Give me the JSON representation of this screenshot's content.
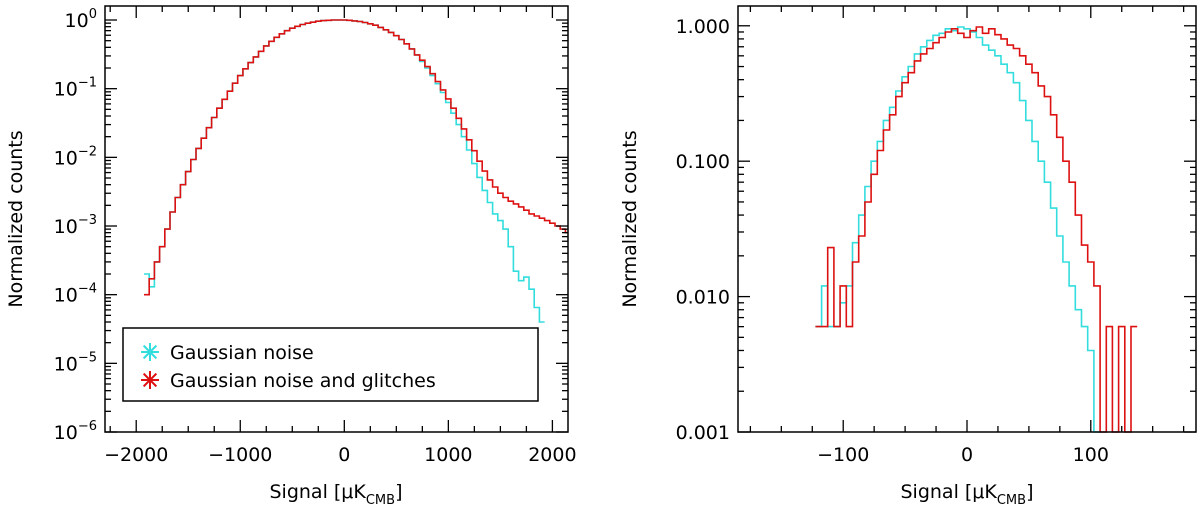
{
  "chart_data": [
    {
      "type": "line",
      "xlabel": "Signal [μK_CMB]",
      "ylabel": "Normalized counts",
      "xlim": [
        -2300,
        2150
      ],
      "ylim": [
        1e-06,
        1.6
      ],
      "yscale": "log",
      "x_ticks": [
        -2000,
        -1000,
        0,
        1000,
        2000
      ],
      "x_tick_labels": [
        "−2000",
        "−1000",
        "0",
        "1000",
        "2000"
      ],
      "y_ticks": [
        1e-06,
        1e-05,
        0.0001,
        0.001,
        0.01,
        0.1,
        1
      ],
      "y_tick_labels": [
        {
          "base": "10",
          "exp": "−6"
        },
        {
          "base": "10",
          "exp": "−5"
        },
        {
          "base": "10",
          "exp": "−4"
        },
        {
          "base": "10",
          "exp": "−3"
        },
        {
          "base": "10",
          "exp": "−2"
        },
        {
          "base": "10",
          "exp": "−1"
        },
        {
          "base": "10",
          "exp": "0"
        }
      ],
      "grid": false,
      "legend": {
        "position": "bottom-left",
        "boxed": true
      },
      "series": [
        {
          "name": "Gaussian noise",
          "color": "#33dddd",
          "x": [
            -1900,
            -1850,
            -1800,
            -1750,
            -1700,
            -1650,
            -1600,
            -1550,
            -1500,
            -1450,
            -1400,
            -1350,
            -1300,
            -1250,
            -1200,
            -1150,
            -1100,
            -1050,
            -1000,
            -950,
            -900,
            -850,
            -800,
            -750,
            -700,
            -650,
            -600,
            -550,
            -500,
            -450,
            -400,
            -350,
            -300,
            -250,
            -200,
            -150,
            -100,
            -50,
            0,
            50,
            100,
            150,
            200,
            250,
            300,
            350,
            400,
            450,
            500,
            550,
            600,
            650,
            700,
            750,
            800,
            850,
            900,
            950,
            1000,
            1050,
            1100,
            1150,
            1200,
            1250,
            1300,
            1350,
            1400,
            1450,
            1500,
            1550,
            1600,
            1650,
            1700,
            1750,
            1800,
            1850,
            1900
          ],
          "y": [
            0.0002,
            0.00013,
            0.0003,
            0.0005,
            0.0009,
            0.0016,
            0.0026,
            0.004,
            0.0062,
            0.0093,
            0.0135,
            0.019,
            0.027,
            0.038,
            0.052,
            0.07,
            0.092,
            0.12,
            0.155,
            0.195,
            0.24,
            0.29,
            0.35,
            0.42,
            0.49,
            0.56,
            0.63,
            0.7,
            0.76,
            0.81,
            0.86,
            0.9,
            0.93,
            0.96,
            0.98,
            0.99,
            1.0,
            1.0,
            1.0,
            0.99,
            0.97,
            0.95,
            0.92,
            0.88,
            0.84,
            0.78,
            0.72,
            0.66,
            0.59,
            0.52,
            0.45,
            0.38,
            0.31,
            0.25,
            0.2,
            0.155,
            0.118,
            0.088,
            0.063,
            0.044,
            0.03,
            0.02,
            0.0128,
            0.0081,
            0.0051,
            0.0033,
            0.0022,
            0.0015,
            0.0012,
            0.0009,
            0.0005,
            0.00022,
            0.00016,
            0.00018,
            0.00012,
            6.5e-05,
            4e-05
          ]
        },
        {
          "name": "Gaussian noise and glitches",
          "color": "#dd1111",
          "x": [
            -1900,
            -1850,
            -1800,
            -1750,
            -1700,
            -1650,
            -1600,
            -1550,
            -1500,
            -1450,
            -1400,
            -1350,
            -1300,
            -1250,
            -1200,
            -1150,
            -1100,
            -1050,
            -1000,
            -950,
            -900,
            -850,
            -800,
            -750,
            -700,
            -650,
            -600,
            -550,
            -500,
            -450,
            -400,
            -350,
            -300,
            -250,
            -200,
            -150,
            -100,
            -50,
            0,
            50,
            100,
            150,
            200,
            250,
            300,
            350,
            400,
            450,
            500,
            550,
            600,
            650,
            700,
            750,
            800,
            850,
            900,
            950,
            1000,
            1050,
            1100,
            1150,
            1200,
            1250,
            1300,
            1350,
            1400,
            1450,
            1500,
            1550,
            1600,
            1650,
            1700,
            1750,
            1800,
            1850,
            1900,
            1950,
            2000,
            2050,
            2100,
            2150
          ],
          "y": [
            0.0001,
            0.00017,
            0.0003,
            0.0005,
            0.0009,
            0.0016,
            0.0026,
            0.004,
            0.0062,
            0.0093,
            0.0135,
            0.019,
            0.027,
            0.038,
            0.052,
            0.07,
            0.092,
            0.12,
            0.155,
            0.195,
            0.24,
            0.29,
            0.35,
            0.42,
            0.49,
            0.56,
            0.63,
            0.7,
            0.76,
            0.81,
            0.86,
            0.9,
            0.93,
            0.96,
            0.98,
            0.99,
            1.0,
            1.0,
            1.0,
            0.99,
            0.97,
            0.95,
            0.92,
            0.88,
            0.84,
            0.78,
            0.72,
            0.66,
            0.59,
            0.52,
            0.45,
            0.38,
            0.31,
            0.26,
            0.21,
            0.165,
            0.127,
            0.096,
            0.071,
            0.052,
            0.037,
            0.026,
            0.018,
            0.0125,
            0.0088,
            0.0063,
            0.0047,
            0.0037,
            0.003,
            0.0026,
            0.0023,
            0.0021,
            0.0019,
            0.0017,
            0.0015,
            0.0014,
            0.0013,
            0.0012,
            0.0011,
            0.001,
            0.0009,
            0.0008
          ]
        }
      ]
    },
    {
      "type": "line",
      "xlabel": "Signal [μK_CMB]",
      "ylabel": "Normalized counts",
      "xlim": [
        -185,
        185
      ],
      "ylim": [
        0.001,
        1.4
      ],
      "yscale": "log",
      "x_ticks": [
        -100,
        0,
        100
      ],
      "x_tick_labels": [
        "−100",
        "0",
        "100"
      ],
      "y_ticks": [
        0.001,
        0.01,
        0.1,
        1
      ],
      "y_tick_labels": [
        "0.001",
        "0.010",
        "0.100",
        "1.000"
      ],
      "grid": false,
      "series": [
        {
          "name": "Gaussian noise",
          "color": "#33dddd",
          "x": [
            -120,
            -115,
            -110,
            -105,
            -100,
            -95,
            -90,
            -85,
            -80,
            -75,
            -70,
            -65,
            -60,
            -55,
            -50,
            -45,
            -40,
            -35,
            -30,
            -25,
            -20,
            -15,
            -10,
            -5,
            0,
            5,
            10,
            15,
            20,
            25,
            30,
            35,
            40,
            45,
            50,
            55,
            60,
            65,
            70,
            75,
            80,
            85,
            90,
            95,
            100,
            105
          ],
          "y": [
            0.006,
            0.012,
            0.006,
            0.006,
            0.009,
            0.012,
            0.025,
            0.04,
            0.065,
            0.1,
            0.14,
            0.2,
            0.25,
            0.33,
            0.42,
            0.5,
            0.62,
            0.7,
            0.78,
            0.85,
            0.88,
            0.95,
            0.92,
            0.98,
            0.95,
            0.9,
            0.82,
            0.72,
            0.66,
            0.6,
            0.52,
            0.45,
            0.38,
            0.28,
            0.2,
            0.14,
            0.1,
            0.07,
            0.045,
            0.028,
            0.018,
            0.012,
            0.008,
            0.006,
            0.004,
            0.001
          ]
        },
        {
          "name": "Gaussian noise and glitches",
          "color": "#dd1111",
          "x": [
            -120,
            -115,
            -110,
            -105,
            -100,
            -95,
            -90,
            -85,
            -80,
            -75,
            -70,
            -65,
            -60,
            -55,
            -50,
            -45,
            -40,
            -35,
            -30,
            -25,
            -20,
            -15,
            -10,
            -5,
            0,
            5,
            10,
            15,
            20,
            25,
            30,
            35,
            40,
            45,
            50,
            55,
            60,
            65,
            70,
            75,
            80,
            85,
            90,
            95,
            100,
            105,
            110,
            115,
            120,
            125,
            130,
            135
          ],
          "y": [
            0.006,
            0.006,
            0.023,
            0.006,
            0.012,
            0.006,
            0.018,
            0.028,
            0.05,
            0.08,
            0.12,
            0.17,
            0.22,
            0.3,
            0.38,
            0.45,
            0.55,
            0.62,
            0.68,
            0.75,
            0.82,
            0.9,
            0.95,
            0.88,
            0.82,
            0.92,
            0.98,
            0.88,
            0.95,
            0.86,
            0.8,
            0.72,
            0.68,
            0.6,
            0.52,
            0.45,
            0.36,
            0.3,
            0.22,
            0.15,
            0.1,
            0.07,
            0.04,
            0.024,
            0.018,
            0.012,
            0.001,
            0.006,
            0.001,
            0.006,
            0.001,
            0.006
          ]
        }
      ]
    }
  ]
}
